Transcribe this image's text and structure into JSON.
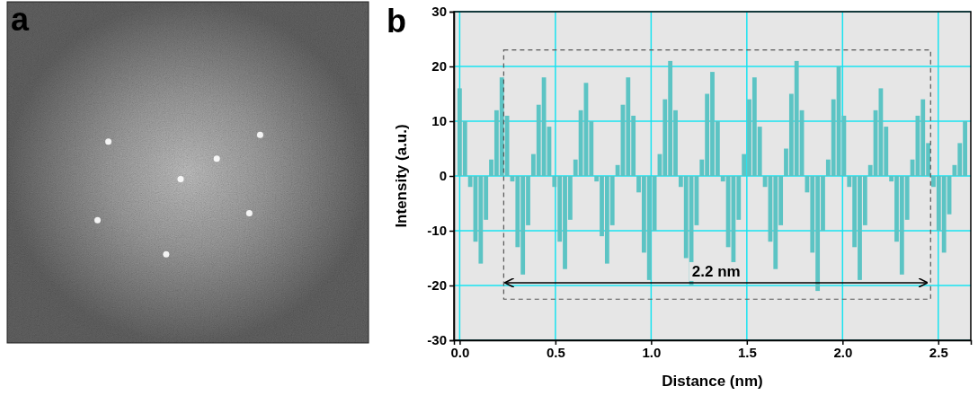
{
  "image_panel": {
    "label": "a"
  },
  "chart_data": {
    "type": "bar",
    "panel_label": "b",
    "x_label": "Distance (nm)",
    "y_label": "Intensity (a.u.)",
    "color": "#5cc4c4",
    "grid": true,
    "xlim": [
      -0.03,
      2.67
    ],
    "ylim": [
      -30,
      30
    ],
    "xticks": [
      {
        "value": 0,
        "label": "0.0"
      },
      0.5,
      {
        "value": 1,
        "label": "1.0"
      },
      1.5,
      {
        "value": 2,
        "label": "2.0"
      },
      2.5
    ],
    "yticks": [
      -30,
      -20,
      -10,
      0,
      10,
      20,
      30
    ],
    "x": [
      0,
      0.0275,
      0.055,
      0.0825,
      0.11,
      0.1375,
      0.165,
      0.1925,
      0.22,
      0.2475,
      0.275,
      0.3025,
      0.33,
      0.3575,
      0.385,
      0.4125,
      0.44,
      0.4675,
      0.495,
      0.5225,
      0.55,
      0.5775,
      0.605,
      0.6325,
      0.66,
      0.6875,
      0.715,
      0.7425,
      0.77,
      0.7975,
      0.825,
      0.8525,
      0.88,
      0.9075,
      0.935,
      0.9625,
      0.99,
      1.0175,
      1.045,
      1.0725,
      1.1,
      1.1275,
      1.155,
      1.1825,
      1.21,
      1.2375,
      1.265,
      1.2925,
      1.32,
      1.3475,
      1.375,
      1.4025,
      1.43,
      1.4575,
      1.485,
      1.5125,
      1.54,
      1.5675,
      1.595,
      1.6225,
      1.65,
      1.6775,
      1.705,
      1.7325,
      1.76,
      1.7875,
      1.815,
      1.8425,
      1.87,
      1.8975,
      1.925,
      1.9525,
      1.98,
      2.0075,
      2.035,
      2.0625,
      2.09,
      2.1175,
      2.145,
      2.1725,
      2.2,
      2.2275,
      2.255,
      2.2825,
      2.31,
      2.3375,
      2.365,
      2.3925,
      2.42,
      2.4475,
      2.475,
      2.5025,
      2.53,
      2.5575,
      2.585,
      2.6125,
      2.64
    ],
    "values": [
      16,
      10,
      -2,
      -12,
      -16,
      -8,
      3,
      12,
      18,
      11,
      -1,
      -13,
      -18,
      -9,
      4,
      13,
      18,
      9,
      -2,
      -12,
      -17,
      -8,
      3,
      12,
      17,
      10,
      -1,
      -11,
      -16,
      -9,
      2,
      13,
      18,
      11,
      -3,
      -14,
      -19,
      -10,
      4,
      14,
      21,
      12,
      -2,
      -15,
      -20,
      -9,
      3,
      15,
      19,
      10,
      -1,
      -13,
      -18,
      -8,
      4,
      14,
      18,
      9,
      -2,
      -12,
      -17,
      -9,
      5,
      15,
      21,
      12,
      -3,
      -14,
      -21,
      -10,
      3,
      14,
      20,
      11,
      -2,
      -13,
      -19,
      -9,
      2,
      12,
      16,
      9,
      -1,
      -12,
      -18,
      -8,
      3,
      11,
      14,
      6,
      -2,
      -10,
      -14,
      -7,
      2,
      6,
      10
    ],
    "annotations": [
      {
        "text": "2.2 nm",
        "x_start": 0.24,
        "x_end": 2.44,
        "y": -19.5,
        "box_x": [
          0.23,
          2.46
        ],
        "box_y": [
          -22.5,
          23
        ]
      }
    ]
  }
}
